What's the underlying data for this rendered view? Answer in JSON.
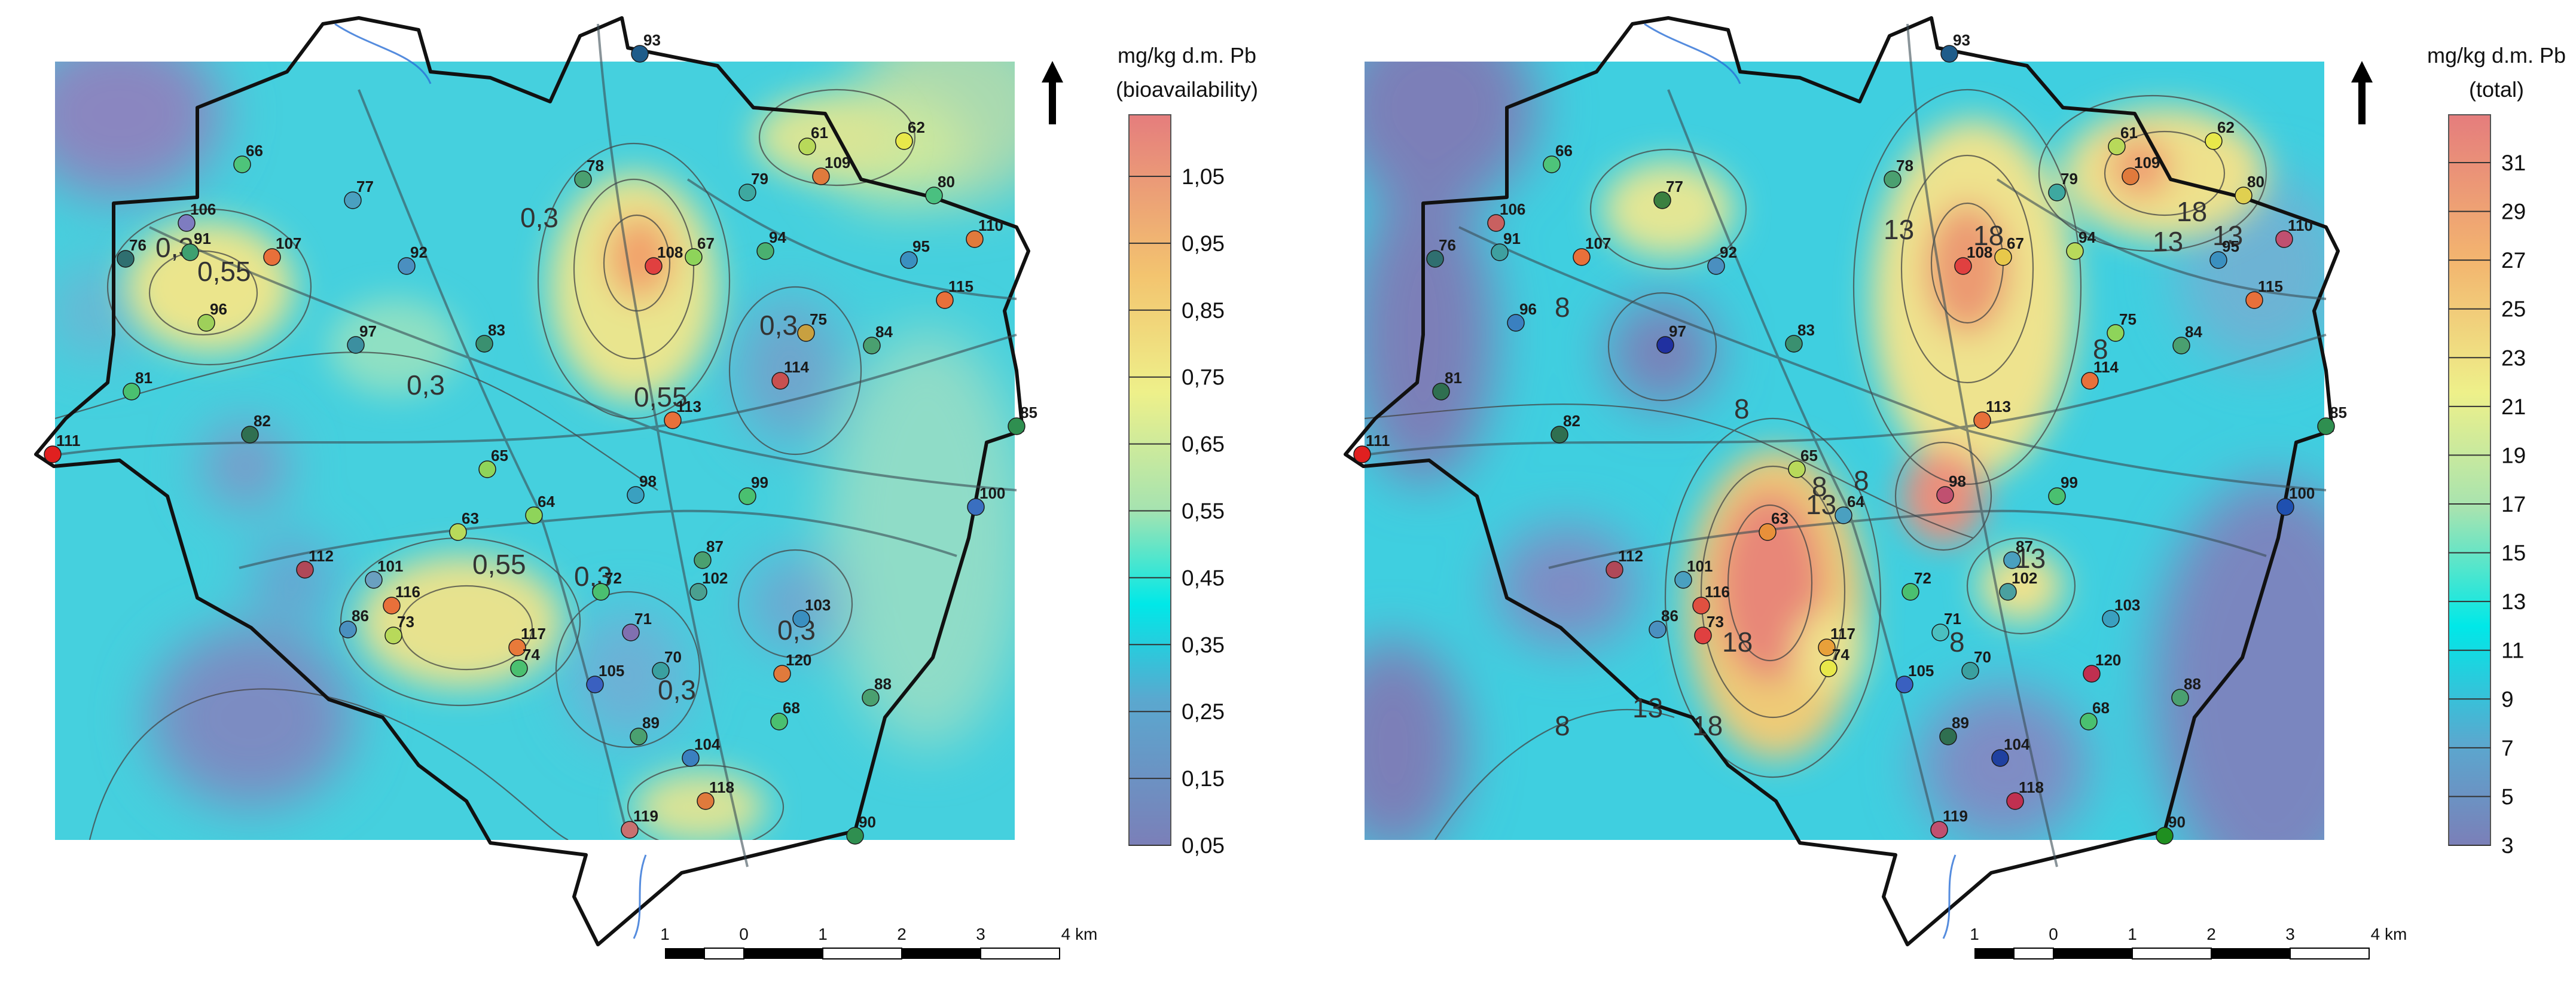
{
  "maps": [
    {
      "id": "bioavailability",
      "legend_title_line1": "mg/kg d.m. Pb",
      "legend_title_line2": "(bioavailability)",
      "legend_ticks": [
        "1,05",
        "0,95",
        "0,85",
        "0,75",
        "0,65",
        "0,55",
        "0,45",
        "0,35",
        "0,25",
        "0,15",
        "0,05"
      ],
      "contour_labels": [
        "0,3",
        "0,55",
        "0,3",
        "0,55",
        "0,3",
        "0,3",
        "0,55",
        "0,3",
        "0,3",
        "0,3"
      ],
      "scale_labels": [
        "1",
        "0",
        "1",
        "2",
        "3",
        "4 km"
      ]
    },
    {
      "id": "total",
      "legend_title_line1": "mg/kg d.m. Pb",
      "legend_title_line2": "(total)",
      "legend_ticks": [
        "31",
        "29",
        "27",
        "25",
        "23",
        "21",
        "19",
        "17",
        "15",
        "13",
        "11",
        "9",
        "7",
        "5",
        "3"
      ],
      "contour_labels": [
        "8",
        "13",
        "13",
        "18",
        "13",
        "18",
        "8",
        "8",
        "8",
        "13",
        "8",
        "13",
        "18",
        "8",
        "8",
        "13",
        "18"
      ],
      "scale_labels": [
        "1",
        "0",
        "1",
        "2",
        "3",
        "4 km"
      ]
    }
  ],
  "site_numbers": [
    "93",
    "66",
    "77",
    "78",
    "61",
    "109",
    "62",
    "79",
    "80",
    "106",
    "76",
    "91",
    "107",
    "92",
    "108",
    "67",
    "94",
    "95",
    "110",
    "96",
    "115",
    "97",
    "83",
    "75",
    "84",
    "81",
    "114",
    "113",
    "82",
    "85",
    "65",
    "98",
    "99",
    "100",
    "63",
    "64",
    "87",
    "112",
    "101",
    "116",
    "102",
    "72",
    "117",
    "86",
    "103",
    "73",
    "71",
    "74",
    "70",
    "120",
    "105",
    "88",
    "68",
    "89",
    "104",
    "118",
    "119",
    "90",
    "111"
  ],
  "colors": {
    "scale_low": "#7b7fb8",
    "scale_mid": "#00e5e5",
    "scale_high": "#e07a7a",
    "boundary": "#111111",
    "river": "#2b6fd6"
  }
}
